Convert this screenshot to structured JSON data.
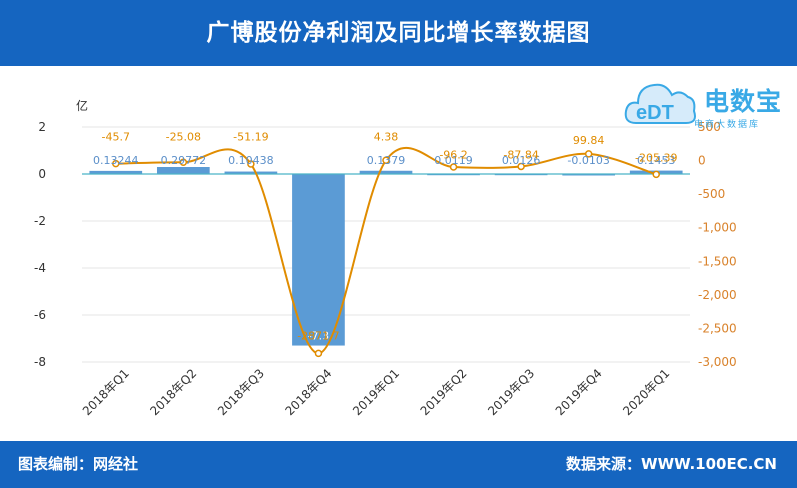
{
  "header": {
    "title": "广博股份净利润及同比增长率数据图"
  },
  "footer": {
    "left": "图表编制：网经社",
    "right": "数据来源：WWW.100EC.CN"
  },
  "logo": {
    "name": "电数宝",
    "sub": "电商大数据库",
    "mark_text": "eDT",
    "accent": "#39a9e6"
  },
  "colors": {
    "bar": "#5b9bd5",
    "line": "#e08c00",
    "axis_left_text": "#333333",
    "axis_right_text": "#d9822b",
    "header": "#1565c0"
  },
  "chart_data": {
    "type": "bar",
    "categories": [
      "2018年Q1",
      "2018年Q2",
      "2018年Q3",
      "2018年Q4",
      "2019年Q1",
      "2019年Q2",
      "2019年Q3",
      "2019年Q4",
      "2020年Q1"
    ],
    "ylabel": "亿",
    "ylim": [
      -8,
      2
    ],
    "yticks": [
      2,
      0,
      -2,
      -4,
      -6,
      -8
    ],
    "y2lim": [
      -3000,
      500
    ],
    "y2ticks": [
      500,
      0,
      -500,
      -1000,
      -1500,
      -2000,
      -2500,
      -3000
    ],
    "y2tick_labels": [
      "500",
      "0",
      "-500",
      "-1,000",
      "-1,500",
      "-2,000",
      "-2,500",
      "-3,000"
    ],
    "y2unit": "%",
    "grid": true,
    "series": [
      {
        "type": "bar",
        "axis": "left",
        "values": [
          0.13244,
          0.29772,
          0.10438,
          -7.3,
          0.1379,
          0.0119,
          0.0126,
          -0.0103,
          0.1453
        ],
        "labels": [
          "0.13244",
          "0.29772",
          "0.10438",
          "-7.3",
          "0.1379",
          "0.0119",
          "0.0126",
          "-0.0103",
          "0.1453"
        ]
      },
      {
        "type": "line",
        "axis": "right",
        "values": [
          -45.7,
          -25.08,
          -51.19,
          -2871.7,
          4.38,
          -96.2,
          -87.84,
          99.84,
          -205.39
        ],
        "labels": [
          "-45.7",
          "-25.08",
          "-51.19",
          "-2871.7",
          "4.38",
          "-96.2",
          "-87.84",
          "99.84",
          "-205.39"
        ]
      }
    ]
  }
}
